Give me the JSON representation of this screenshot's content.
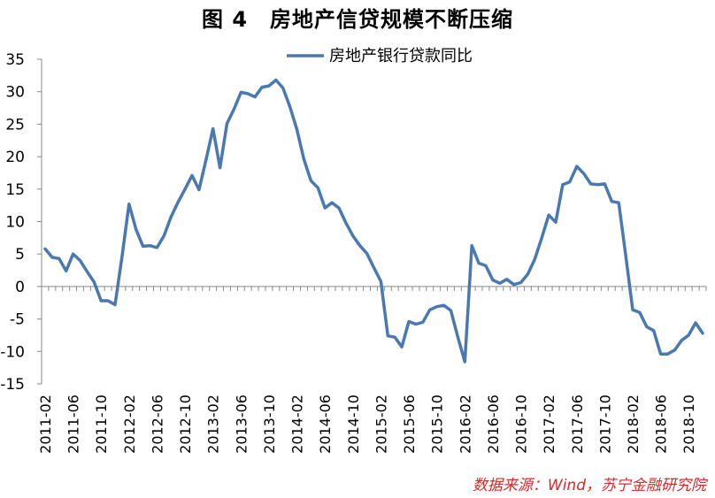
{
  "title": "图 4　房地产信贷规模不断压缩",
  "source": "数据来源：Wind，苏宁金融研究院",
  "chart_data": {
    "type": "line",
    "title": "图 4　房地产信贷规模不断压缩",
    "xlabel": "",
    "ylabel": "",
    "ylim": [
      -15,
      35
    ],
    "y_ticks": [
      35,
      30,
      25,
      20,
      15,
      10,
      5,
      0,
      -5,
      -10,
      -15
    ],
    "x_tick_labels": [
      "2011-02",
      "2011-06",
      "2011-10",
      "2012-02",
      "2012-06",
      "2012-10",
      "2013-02",
      "2013-06",
      "2013-10",
      "2014-02",
      "2014-06",
      "2014-10",
      "2015-02",
      "2015-06",
      "2015-10",
      "2016-02",
      "2016-06",
      "2016-10",
      "2017-02",
      "2017-06",
      "2017-10",
      "2018-02",
      "2018-06",
      "2018-10"
    ],
    "grid": false,
    "legend_position": "top-center",
    "x": [
      "2011-02",
      "2011-03",
      "2011-04",
      "2011-05",
      "2011-06",
      "2011-07",
      "2011-08",
      "2011-09",
      "2011-10",
      "2011-11",
      "2011-12",
      "2012-01",
      "2012-02",
      "2012-03",
      "2012-04",
      "2012-05",
      "2012-06",
      "2012-07",
      "2012-08",
      "2012-09",
      "2012-10",
      "2012-11",
      "2012-12",
      "2013-01",
      "2013-02",
      "2013-03",
      "2013-04",
      "2013-05",
      "2013-06",
      "2013-07",
      "2013-08",
      "2013-09",
      "2013-10",
      "2013-11",
      "2013-12",
      "2014-01",
      "2014-02",
      "2014-03",
      "2014-04",
      "2014-05",
      "2014-06",
      "2014-07",
      "2014-08",
      "2014-09",
      "2014-10",
      "2014-11",
      "2014-12",
      "2015-01",
      "2015-02",
      "2015-03",
      "2015-04",
      "2015-05",
      "2015-06",
      "2015-07",
      "2015-08",
      "2015-09",
      "2015-10",
      "2015-11",
      "2015-12",
      "2016-01",
      "2016-02",
      "2016-03",
      "2016-04",
      "2016-05",
      "2016-06",
      "2016-07",
      "2016-08",
      "2016-09",
      "2016-10",
      "2016-11",
      "2016-12",
      "2017-01",
      "2017-02",
      "2017-03",
      "2017-04",
      "2017-05",
      "2017-06",
      "2017-07",
      "2017-08",
      "2017-09",
      "2017-10",
      "2017-11",
      "2017-12",
      "2018-01",
      "2018-02",
      "2018-03",
      "2018-04",
      "2018-05",
      "2018-06",
      "2018-07",
      "2018-08",
      "2018-09",
      "2018-10",
      "2018-11",
      "2018-12"
    ],
    "series": [
      {
        "name": "房地产银行贷款同比",
        "color": "#4a78b0",
        "values": [
          5.8,
          4.5,
          4.3,
          2.4,
          5.0,
          4.0,
          2.3,
          0.7,
          -2.2,
          -2.2,
          -2.8,
          4.6,
          12.7,
          8.8,
          6.2,
          6.3,
          6.0,
          7.8,
          10.7,
          13.0,
          15.0,
          17.1,
          14.9,
          19.5,
          24.3,
          18.3,
          25.1,
          27.3,
          29.9,
          29.7,
          29.2,
          30.7,
          30.9,
          31.8,
          30.6,
          27.7,
          24.2,
          19.6,
          16.3,
          15.2,
          12.1,
          12.9,
          12.1,
          9.8,
          7.8,
          6.3,
          5.1,
          2.9,
          0.8,
          -7.6,
          -7.8,
          -9.3,
          -5.4,
          -5.8,
          -5.5,
          -3.6,
          -3.1,
          -2.9,
          -3.7,
          -7.8,
          -11.6,
          6.3,
          3.6,
          3.2,
          1.0,
          0.5,
          1.1,
          0.3,
          0.6,
          1.9,
          4.2,
          7.5,
          11.0,
          9.9,
          15.7,
          16.1,
          18.5,
          17.4,
          15.8,
          15.7,
          15.8,
          13.1,
          12.9,
          4.8,
          -3.6,
          -4.0,
          -6.2,
          -6.8,
          -10.4,
          -10.4,
          -9.8,
          -8.3,
          -7.5,
          -5.6,
          -7.2
        ]
      }
    ]
  }
}
